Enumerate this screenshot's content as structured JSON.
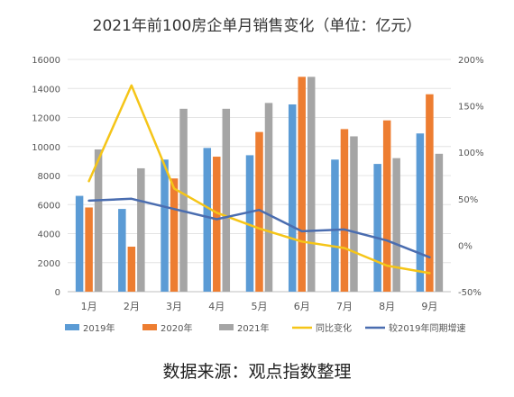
{
  "chart_data": {
    "type": "bar",
    "title": "2021年前100房企单月销售变化（单位：亿元）",
    "categories": [
      "1月",
      "2月",
      "3月",
      "4月",
      "5月",
      "6月",
      "7月",
      "8月",
      "9月"
    ],
    "series": [
      {
        "name": "2019年",
        "kind": "bar",
        "axis": "left",
        "color": "#5b9bd5",
        "values": [
          6600,
          5700,
          9100,
          9900,
          9400,
          12900,
          9100,
          8800,
          10900
        ]
      },
      {
        "name": "2020年",
        "kind": "bar",
        "axis": "left",
        "color": "#ed7d31",
        "values": [
          5800,
          3100,
          7800,
          9300,
          11000,
          14800,
          11200,
          11800,
          13600
        ]
      },
      {
        "name": "2021年",
        "kind": "bar",
        "axis": "left",
        "color": "#a5a5a5",
        "values": [
          9800,
          8500,
          12600,
          12600,
          13000,
          14800,
          10700,
          9200,
          9500
        ]
      },
      {
        "name": "同比变化",
        "kind": "line",
        "axis": "right",
        "color": "#f5c518",
        "values": [
          69,
          172,
          61,
          35,
          18,
          4,
          -3,
          -22,
          -30
        ]
      },
      {
        "name": "较2019年同期增速",
        "kind": "line",
        "axis": "right",
        "color": "#4a6db0",
        "values": [
          48,
          50,
          39,
          28,
          38,
          15,
          17,
          5,
          -13
        ]
      }
    ],
    "y_left": {
      "min": 0,
      "max": 16000,
      "ticks": [
        "0",
        "2000",
        "4000",
        "6000",
        "8000",
        "10000",
        "12000",
        "14000",
        "16000"
      ]
    },
    "y_right": {
      "min": -50,
      "max": 200,
      "ticks": [
        "-50%",
        "0%",
        "50%",
        "100%",
        "150%",
        "200%"
      ]
    },
    "grid": true,
    "legend": "bottom"
  },
  "footer": {
    "source": "数据来源：观点指数整理"
  }
}
